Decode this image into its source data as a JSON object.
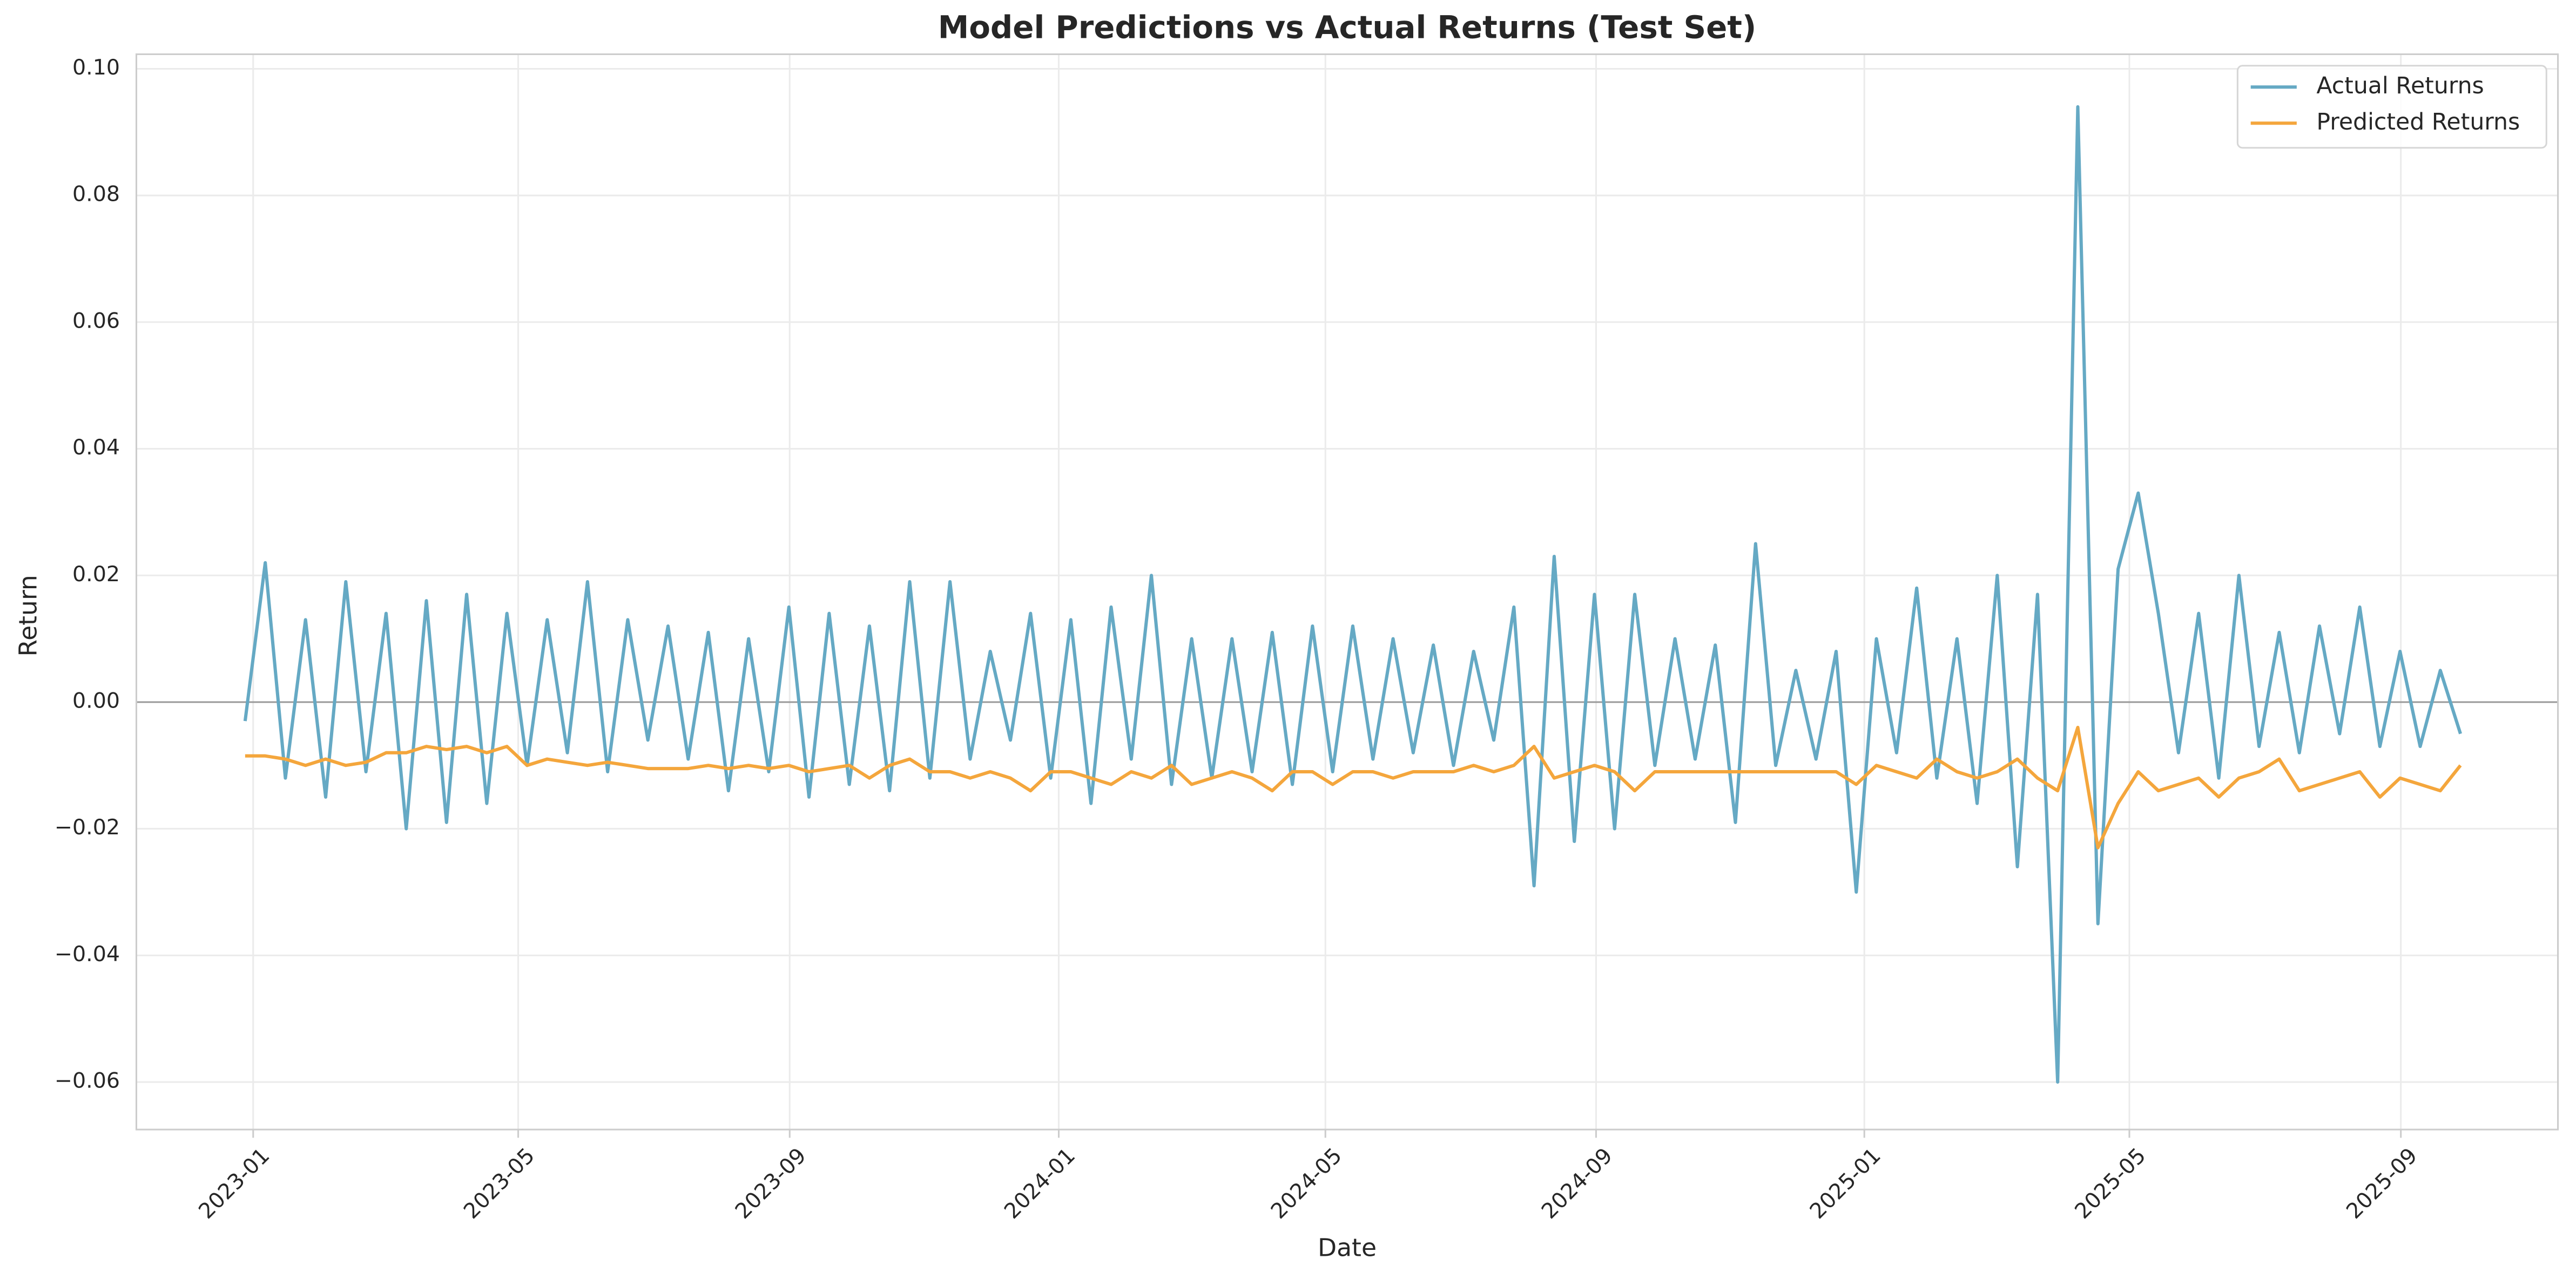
{
  "chart_data": {
    "type": "line",
    "title": "Model Predictions vs Actual Returns (Test Set)",
    "x_label": "Date",
    "y_label": "Return",
    "x": [
      2022.99,
      2023.015,
      2023.04,
      2023.065,
      2023.09,
      2023.115,
      2023.14,
      2023.165,
      2023.19,
      2023.215,
      2023.24,
      2023.265,
      2023.29,
      2023.315,
      2023.34,
      2023.365,
      2023.39,
      2023.415,
      2023.44,
      2023.465,
      2023.49,
      2023.515,
      2023.54,
      2023.565,
      2023.59,
      2023.615,
      2023.64,
      2023.665,
      2023.69,
      2023.715,
      2023.74,
      2023.765,
      2023.79,
      2023.815,
      2023.84,
      2023.865,
      2023.89,
      2023.915,
      2023.94,
      2023.965,
      2023.99,
      2024.015,
      2024.04,
      2024.065,
      2024.09,
      2024.115,
      2024.14,
      2024.165,
      2024.19,
      2024.215,
      2024.24,
      2024.265,
      2024.29,
      2024.315,
      2024.34,
      2024.365,
      2024.39,
      2024.415,
      2024.44,
      2024.465,
      2024.49,
      2024.515,
      2024.54,
      2024.565,
      2024.59,
      2024.615,
      2024.64,
      2024.665,
      2024.69,
      2024.715,
      2024.74,
      2024.765,
      2024.79,
      2024.815,
      2024.84,
      2024.865,
      2024.89,
      2024.915,
      2024.94,
      2024.965,
      2024.99,
      2025.015,
      2025.04,
      2025.065,
      2025.09,
      2025.115,
      2025.14,
      2025.165,
      2025.19,
      2025.215,
      2025.24,
      2025.265,
      2025.29,
      2025.315,
      2025.34,
      2025.365,
      2025.39,
      2025.415,
      2025.44,
      2025.465,
      2025.49,
      2025.515,
      2025.54,
      2025.565,
      2025.59,
      2025.615,
      2025.64,
      2025.665,
      2025.69,
      2025.715,
      2025.74
    ],
    "series": [
      {
        "name": "Actual Returns",
        "color": "#65a9c4",
        "values": [
          -0.003,
          0.022,
          -0.012,
          0.013,
          -0.015,
          0.019,
          -0.011,
          0.014,
          -0.02,
          0.016,
          -0.019,
          0.017,
          -0.016,
          0.014,
          -0.01,
          0.013,
          -0.008,
          0.019,
          -0.011,
          0.013,
          -0.006,
          0.012,
          -0.009,
          0.011,
          -0.014,
          0.01,
          -0.011,
          0.015,
          -0.015,
          0.014,
          -0.013,
          0.012,
          -0.014,
          0.019,
          -0.012,
          0.019,
          -0.009,
          0.008,
          -0.006,
          0.014,
          -0.012,
          0.013,
          -0.016,
          0.015,
          -0.009,
          0.02,
          -0.013,
          0.01,
          -0.012,
          0.01,
          -0.011,
          0.011,
          -0.013,
          0.012,
          -0.011,
          0.012,
          -0.009,
          0.01,
          -0.008,
          0.009,
          -0.01,
          0.008,
          -0.006,
          0.015,
          -0.029,
          0.023,
          -0.022,
          0.017,
          -0.02,
          0.017,
          -0.01,
          0.01,
          -0.009,
          0.009,
          -0.019,
          0.025,
          -0.01,
          0.005,
          -0.009,
          0.008,
          -0.03,
          0.01,
          -0.008,
          0.018,
          -0.012,
          0.01,
          -0.016,
          0.02,
          -0.026,
          0.017,
          -0.06,
          0.094,
          -0.035,
          0.021,
          0.033,
          0.014,
          -0.008,
          0.014,
          -0.012,
          0.02,
          -0.007,
          0.011,
          -0.008,
          0.012,
          -0.005,
          0.015,
          -0.007,
          0.008,
          -0.007,
          0.005,
          -0.005
        ]
      },
      {
        "name": "Predicted Returns",
        "color": "#f4a63c",
        "values": [
          -0.0085,
          -0.0085,
          -0.009,
          -0.01,
          -0.009,
          -0.01,
          -0.0095,
          -0.008,
          -0.008,
          -0.007,
          -0.0075,
          -0.007,
          -0.008,
          -0.007,
          -0.01,
          -0.009,
          -0.0095,
          -0.01,
          -0.0095,
          -0.01,
          -0.0105,
          -0.0105,
          -0.0105,
          -0.01,
          -0.0105,
          -0.01,
          -0.0105,
          -0.01,
          -0.011,
          -0.0105,
          -0.01,
          -0.012,
          -0.01,
          -0.009,
          -0.011,
          -0.011,
          -0.012,
          -0.011,
          -0.012,
          -0.014,
          -0.011,
          -0.011,
          -0.012,
          -0.013,
          -0.011,
          -0.012,
          -0.01,
          -0.013,
          -0.012,
          -0.011,
          -0.012,
          -0.014,
          -0.011,
          -0.011,
          -0.013,
          -0.011,
          -0.011,
          -0.012,
          -0.011,
          -0.011,
          -0.011,
          -0.01,
          -0.011,
          -0.01,
          -0.007,
          -0.012,
          -0.011,
          -0.01,
          -0.011,
          -0.014,
          -0.011,
          -0.011,
          -0.011,
          -0.011,
          -0.011,
          -0.011,
          -0.011,
          -0.011,
          -0.011,
          -0.011,
          -0.013,
          -0.01,
          -0.011,
          -0.012,
          -0.009,
          -0.011,
          -0.012,
          -0.011,
          -0.009,
          -0.012,
          -0.014,
          -0.004,
          -0.023,
          -0.016,
          -0.011,
          -0.014,
          -0.013,
          -0.012,
          -0.015,
          -0.012,
          -0.011,
          -0.009,
          -0.014,
          -0.013,
          -0.012,
          -0.011,
          -0.015,
          -0.012,
          -0.013,
          -0.014,
          -0.01
        ]
      }
    ],
    "xlim": [
      2022.855,
      2025.861
    ],
    "xticks": [
      {
        "value": 2023.0,
        "label": "2023-01"
      },
      {
        "value": 2023.329,
        "label": "2023-05"
      },
      {
        "value": 2023.666,
        "label": "2023-09"
      },
      {
        "value": 2024.0,
        "label": "2024-01"
      },
      {
        "value": 2024.331,
        "label": "2024-05"
      },
      {
        "value": 2024.667,
        "label": "2024-09"
      },
      {
        "value": 2025.0,
        "label": "2025-01"
      },
      {
        "value": 2025.329,
        "label": "2025-05"
      },
      {
        "value": 2025.666,
        "label": "2025-09"
      }
    ],
    "ylim": [
      -0.0675,
      0.1023
    ],
    "yticks": [
      {
        "value": -0.06,
        "label": "−0.06"
      },
      {
        "value": -0.04,
        "label": "−0.04"
      },
      {
        "value": -0.02,
        "label": "−0.02"
      },
      {
        "value": 0,
        "label": "0.00"
      },
      0.02,
      0.04,
      0.06,
      0.08,
      {
        "value": 0.1,
        "label": "0.10"
      }
    ],
    "hline": 0,
    "grid": true,
    "legend": "upper right"
  }
}
